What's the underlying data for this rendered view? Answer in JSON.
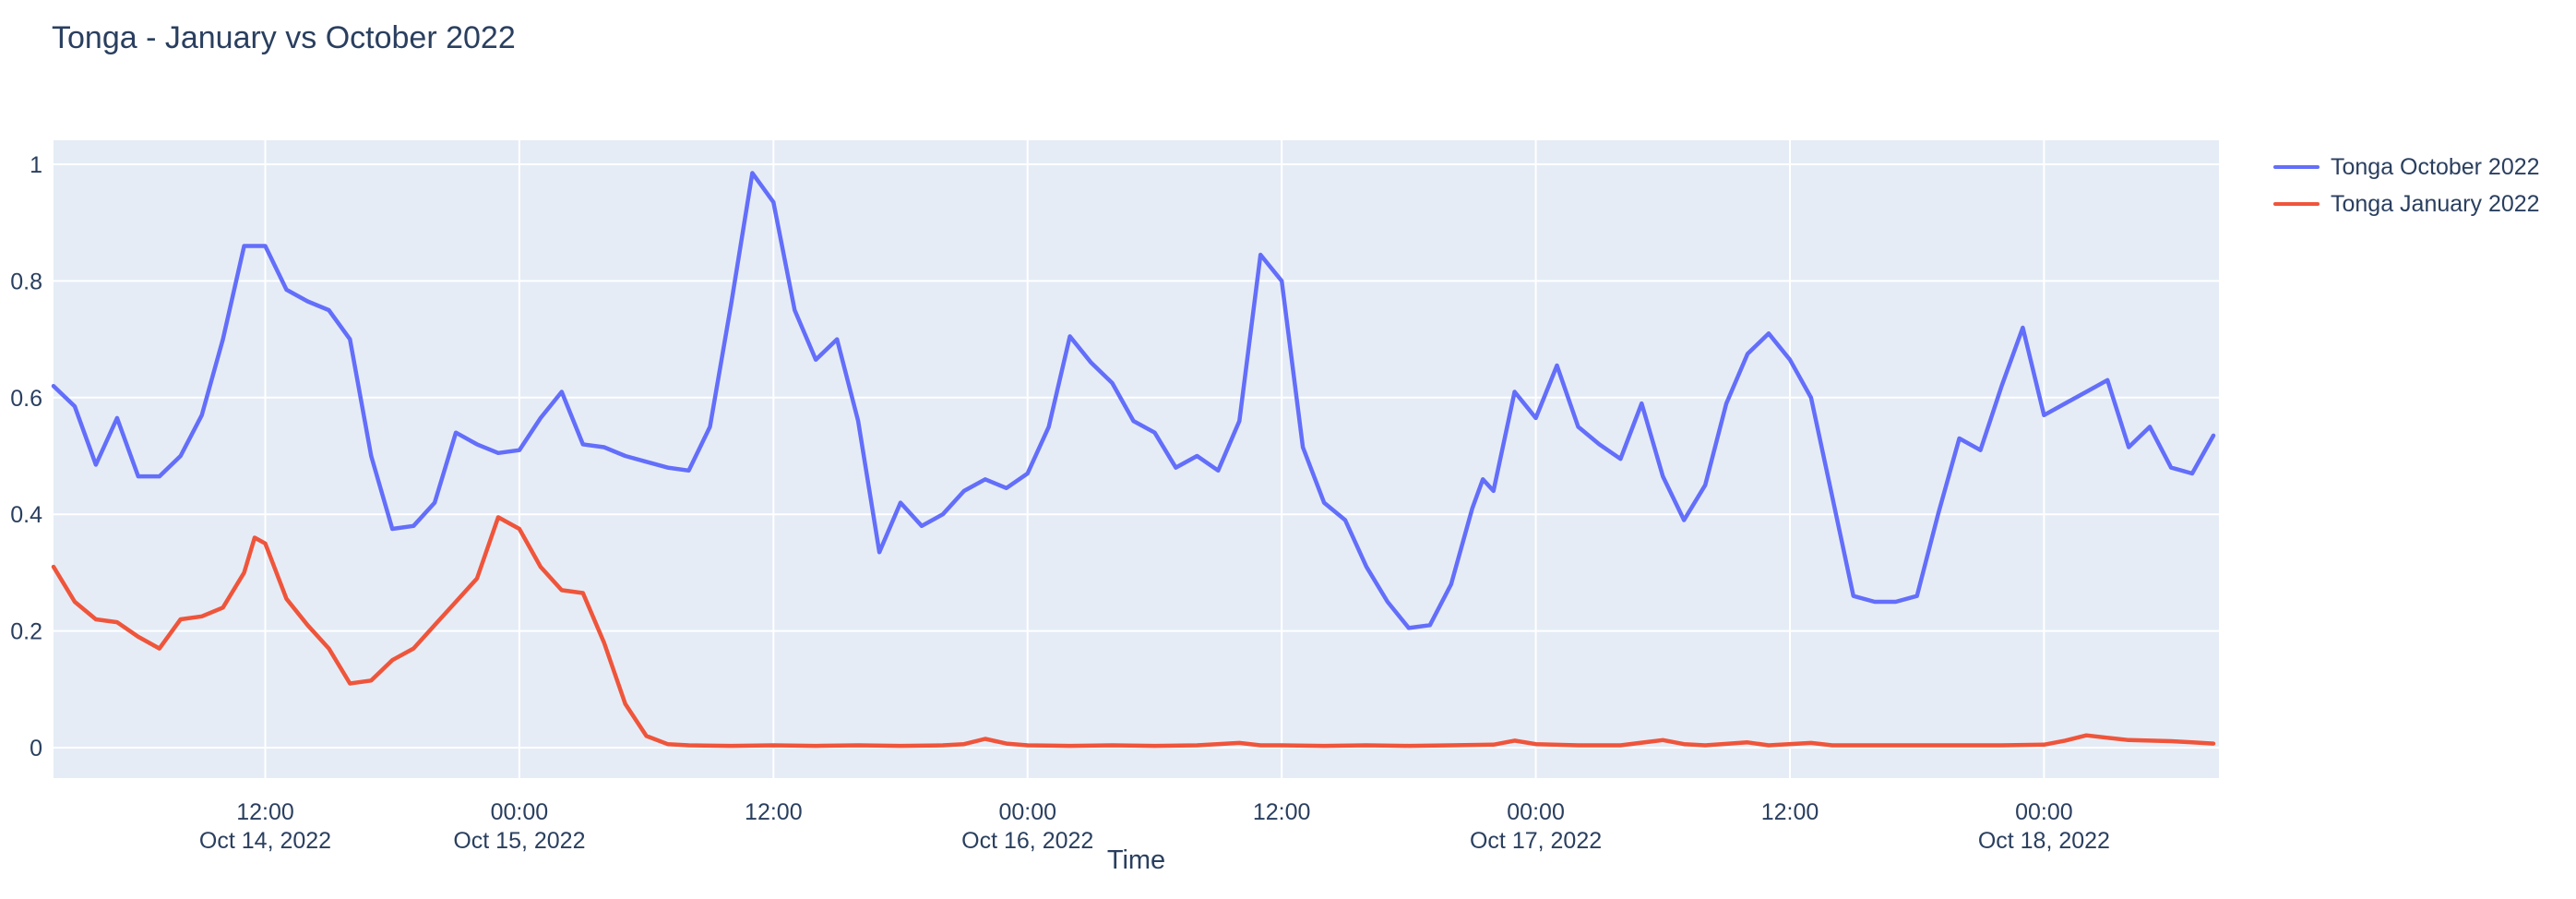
{
  "chart_data": {
    "type": "line",
    "title": "Tonga - January vs October 2022",
    "xlabel": "Time",
    "ylabel": "",
    "x_unit": "hours since Oct 14, 2022 00:00",
    "x_range_hours": [
      2,
      104
    ],
    "y_axis_ticks": [
      {
        "v": 0,
        "label": "0"
      },
      {
        "v": 0.2,
        "label": "0.2"
      },
      {
        "v": 0.4,
        "label": "0.4"
      },
      {
        "v": 0.6,
        "label": "0.6"
      },
      {
        "v": 0.8,
        "label": "0.8"
      },
      {
        "v": 1,
        "label": "1"
      }
    ],
    "x_axis_ticks": [
      {
        "t": 12,
        "time": "12:00",
        "date": "Oct 14, 2022"
      },
      {
        "t": 24,
        "time": "00:00",
        "date": "Oct 15, 2022"
      },
      {
        "t": 36,
        "time": "12:00",
        "date": null
      },
      {
        "t": 48,
        "time": "00:00",
        "date": "Oct 16, 2022"
      },
      {
        "t": 60,
        "time": "12:00",
        "date": null
      },
      {
        "t": 72,
        "time": "00:00",
        "date": "Oct 17, 2022"
      },
      {
        "t": 84,
        "time": "12:00",
        "date": null
      },
      {
        "t": 96,
        "time": "00:00",
        "date": "Oct 18, 2022"
      }
    ],
    "grid": true,
    "legend_position": "top-right",
    "plot_bg_color": "#E5ECF6",
    "grid_color": "#FFFFFF",
    "text_color": "#2a3f5f",
    "series": [
      {
        "name": "Tonga October 2022",
        "color": "#636EFA",
        "points": [
          [
            2,
            0.62
          ],
          [
            3,
            0.585
          ],
          [
            4,
            0.485
          ],
          [
            5,
            0.565
          ],
          [
            6,
            0.465
          ],
          [
            7,
            0.465
          ],
          [
            8,
            0.5
          ],
          [
            9,
            0.57
          ],
          [
            10,
            0.7
          ],
          [
            11,
            0.86
          ],
          [
            12,
            0.86
          ],
          [
            13,
            0.785
          ],
          [
            14,
            0.765
          ],
          [
            15,
            0.75
          ],
          [
            16,
            0.7
          ],
          [
            17,
            0.5
          ],
          [
            18,
            0.375
          ],
          [
            19,
            0.38
          ],
          [
            20,
            0.42
          ],
          [
            21,
            0.54
          ],
          [
            22,
            0.52
          ],
          [
            23,
            0.505
          ],
          [
            24,
            0.51
          ],
          [
            25,
            0.565
          ],
          [
            26,
            0.61
          ],
          [
            27,
            0.52
          ],
          [
            28,
            0.515
          ],
          [
            29,
            0.5
          ],
          [
            30,
            0.49
          ],
          [
            31,
            0.48
          ],
          [
            32,
            0.475
          ],
          [
            33,
            0.55
          ],
          [
            34,
            0.76
          ],
          [
            35,
            0.985
          ],
          [
            35.5,
            0.96
          ],
          [
            36,
            0.935
          ],
          [
            37,
            0.75
          ],
          [
            38,
            0.665
          ],
          [
            39,
            0.7
          ],
          [
            40,
            0.56
          ],
          [
            41,
            0.335
          ],
          [
            42,
            0.42
          ],
          [
            43,
            0.38
          ],
          [
            44,
            0.4
          ],
          [
            45,
            0.44
          ],
          [
            46,
            0.46
          ],
          [
            47,
            0.445
          ],
          [
            48,
            0.47
          ],
          [
            49,
            0.55
          ],
          [
            50,
            0.705
          ],
          [
            51,
            0.66
          ],
          [
            52,
            0.625
          ],
          [
            53,
            0.56
          ],
          [
            54,
            0.54
          ],
          [
            55,
            0.48
          ],
          [
            56,
            0.5
          ],
          [
            57,
            0.475
          ],
          [
            58,
            0.56
          ],
          [
            59,
            0.845
          ],
          [
            60,
            0.8
          ],
          [
            61,
            0.515
          ],
          [
            62,
            0.42
          ],
          [
            63,
            0.39
          ],
          [
            64,
            0.31
          ],
          [
            65,
            0.25
          ],
          [
            66,
            0.205
          ],
          [
            67,
            0.21
          ],
          [
            68,
            0.28
          ],
          [
            69,
            0.41
          ],
          [
            69.5,
            0.46
          ],
          [
            70,
            0.44
          ],
          [
            71,
            0.61
          ],
          [
            72,
            0.565
          ],
          [
            73,
            0.655
          ],
          [
            74,
            0.55
          ],
          [
            75,
            0.52
          ],
          [
            76,
            0.495
          ],
          [
            77,
            0.59
          ],
          [
            78,
            0.465
          ],
          [
            79,
            0.39
          ],
          [
            80,
            0.45
          ],
          [
            81,
            0.59
          ],
          [
            82,
            0.675
          ],
          [
            83,
            0.71
          ],
          [
            84,
            0.665
          ],
          [
            85,
            0.6
          ],
          [
            86,
            0.43
          ],
          [
            87,
            0.26
          ],
          [
            88,
            0.25
          ],
          [
            89,
            0.25
          ],
          [
            90,
            0.26
          ],
          [
            91,
            0.4
          ],
          [
            92,
            0.53
          ],
          [
            93,
            0.51
          ],
          [
            94,
            0.62
          ],
          [
            95,
            0.72
          ],
          [
            96,
            0.57
          ],
          [
            97,
            0.59
          ],
          [
            98,
            0.61
          ],
          [
            99,
            0.63
          ],
          [
            100,
            0.515
          ],
          [
            101,
            0.55
          ],
          [
            102,
            0.48
          ],
          [
            103,
            0.47
          ],
          [
            104,
            0.535
          ]
        ]
      },
      {
        "name": "Tonga January 2022",
        "color": "#EF553B",
        "points": [
          [
            2,
            0.31
          ],
          [
            3,
            0.25
          ],
          [
            4,
            0.22
          ],
          [
            5,
            0.215
          ],
          [
            6,
            0.19
          ],
          [
            7,
            0.17
          ],
          [
            8,
            0.22
          ],
          [
            9,
            0.225
          ],
          [
            10,
            0.24
          ],
          [
            11,
            0.3
          ],
          [
            11.5,
            0.36
          ],
          [
            12,
            0.35
          ],
          [
            13,
            0.255
          ],
          [
            14,
            0.21
          ],
          [
            15,
            0.17
          ],
          [
            16,
            0.11
          ],
          [
            17,
            0.115
          ],
          [
            18,
            0.15
          ],
          [
            19,
            0.17
          ],
          [
            20,
            0.21
          ],
          [
            21,
            0.25
          ],
          [
            22,
            0.29
          ],
          [
            23,
            0.395
          ],
          [
            24,
            0.375
          ],
          [
            25,
            0.31
          ],
          [
            26,
            0.27
          ],
          [
            27,
            0.265
          ],
          [
            28,
            0.18
          ],
          [
            29,
            0.075
          ],
          [
            30,
            0.02
          ],
          [
            31,
            0.006
          ],
          [
            32,
            0.004
          ],
          [
            34,
            0.003
          ],
          [
            36,
            0.004
          ],
          [
            38,
            0.003
          ],
          [
            40,
            0.004
          ],
          [
            42,
            0.003
          ],
          [
            44,
            0.004
          ],
          [
            45,
            0.006
          ],
          [
            46,
            0.015
          ],
          [
            47,
            0.007
          ],
          [
            48,
            0.004
          ],
          [
            50,
            0.003
          ],
          [
            52,
            0.004
          ],
          [
            54,
            0.003
          ],
          [
            56,
            0.004
          ],
          [
            58,
            0.008
          ],
          [
            59,
            0.004
          ],
          [
            60,
            0.004
          ],
          [
            62,
            0.003
          ],
          [
            64,
            0.004
          ],
          [
            66,
            0.003
          ],
          [
            68,
            0.004
          ],
          [
            70,
            0.005
          ],
          [
            71,
            0.012
          ],
          [
            72,
            0.006
          ],
          [
            74,
            0.004
          ],
          [
            76,
            0.004
          ],
          [
            78,
            0.013
          ],
          [
            79,
            0.006
          ],
          [
            80,
            0.004
          ],
          [
            82,
            0.009
          ],
          [
            83,
            0.004
          ],
          [
            85,
            0.008
          ],
          [
            86,
            0.004
          ],
          [
            88,
            0.004
          ],
          [
            90,
            0.004
          ],
          [
            92,
            0.004
          ],
          [
            94,
            0.004
          ],
          [
            96,
            0.005
          ],
          [
            97,
            0.012
          ],
          [
            98,
            0.021
          ],
          [
            99,
            0.017
          ],
          [
            100,
            0.013
          ],
          [
            101,
            0.012
          ],
          [
            102,
            0.011
          ],
          [
            103,
            0.009
          ],
          [
            104,
            0.007
          ]
        ]
      }
    ]
  }
}
